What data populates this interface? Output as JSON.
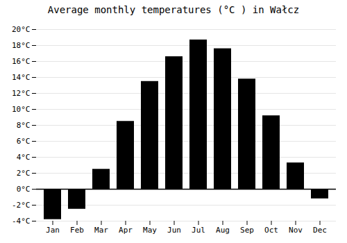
{
  "chart_data": {
    "type": "bar",
    "title": "Average monthly temperatures (°C ) in Wałcz",
    "categories": [
      "Jan",
      "Feb",
      "Mar",
      "Apr",
      "May",
      "Jun",
      "Jul",
      "Aug",
      "Sep",
      "Oct",
      "Nov",
      "Dec"
    ],
    "values": [
      -3.8,
      -2.5,
      2.5,
      8.5,
      13.5,
      16.6,
      18.7,
      17.6,
      13.8,
      9.2,
      3.3,
      -1.2
    ],
    "ylim": [
      -4,
      20
    ],
    "yticks": [
      {
        "value": -4,
        "label": "-4°C"
      },
      {
        "value": -2,
        "label": "-2°C"
      },
      {
        "value": 0,
        "label": "0°C"
      },
      {
        "value": 2,
        "label": "2°C"
      },
      {
        "value": 4,
        "label": "4°C"
      },
      {
        "value": 6,
        "label": "6°C"
      },
      {
        "value": 8,
        "label": "8°C"
      },
      {
        "value": 10,
        "label": "10°C"
      },
      {
        "value": 12,
        "label": "12°C"
      },
      {
        "value": 14,
        "label": "14°C"
      },
      {
        "value": 16,
        "label": "16°C"
      },
      {
        "value": 18,
        "label": "18°C"
      },
      {
        "value": 20,
        "label": "20°C"
      }
    ],
    "grid": true
  }
}
